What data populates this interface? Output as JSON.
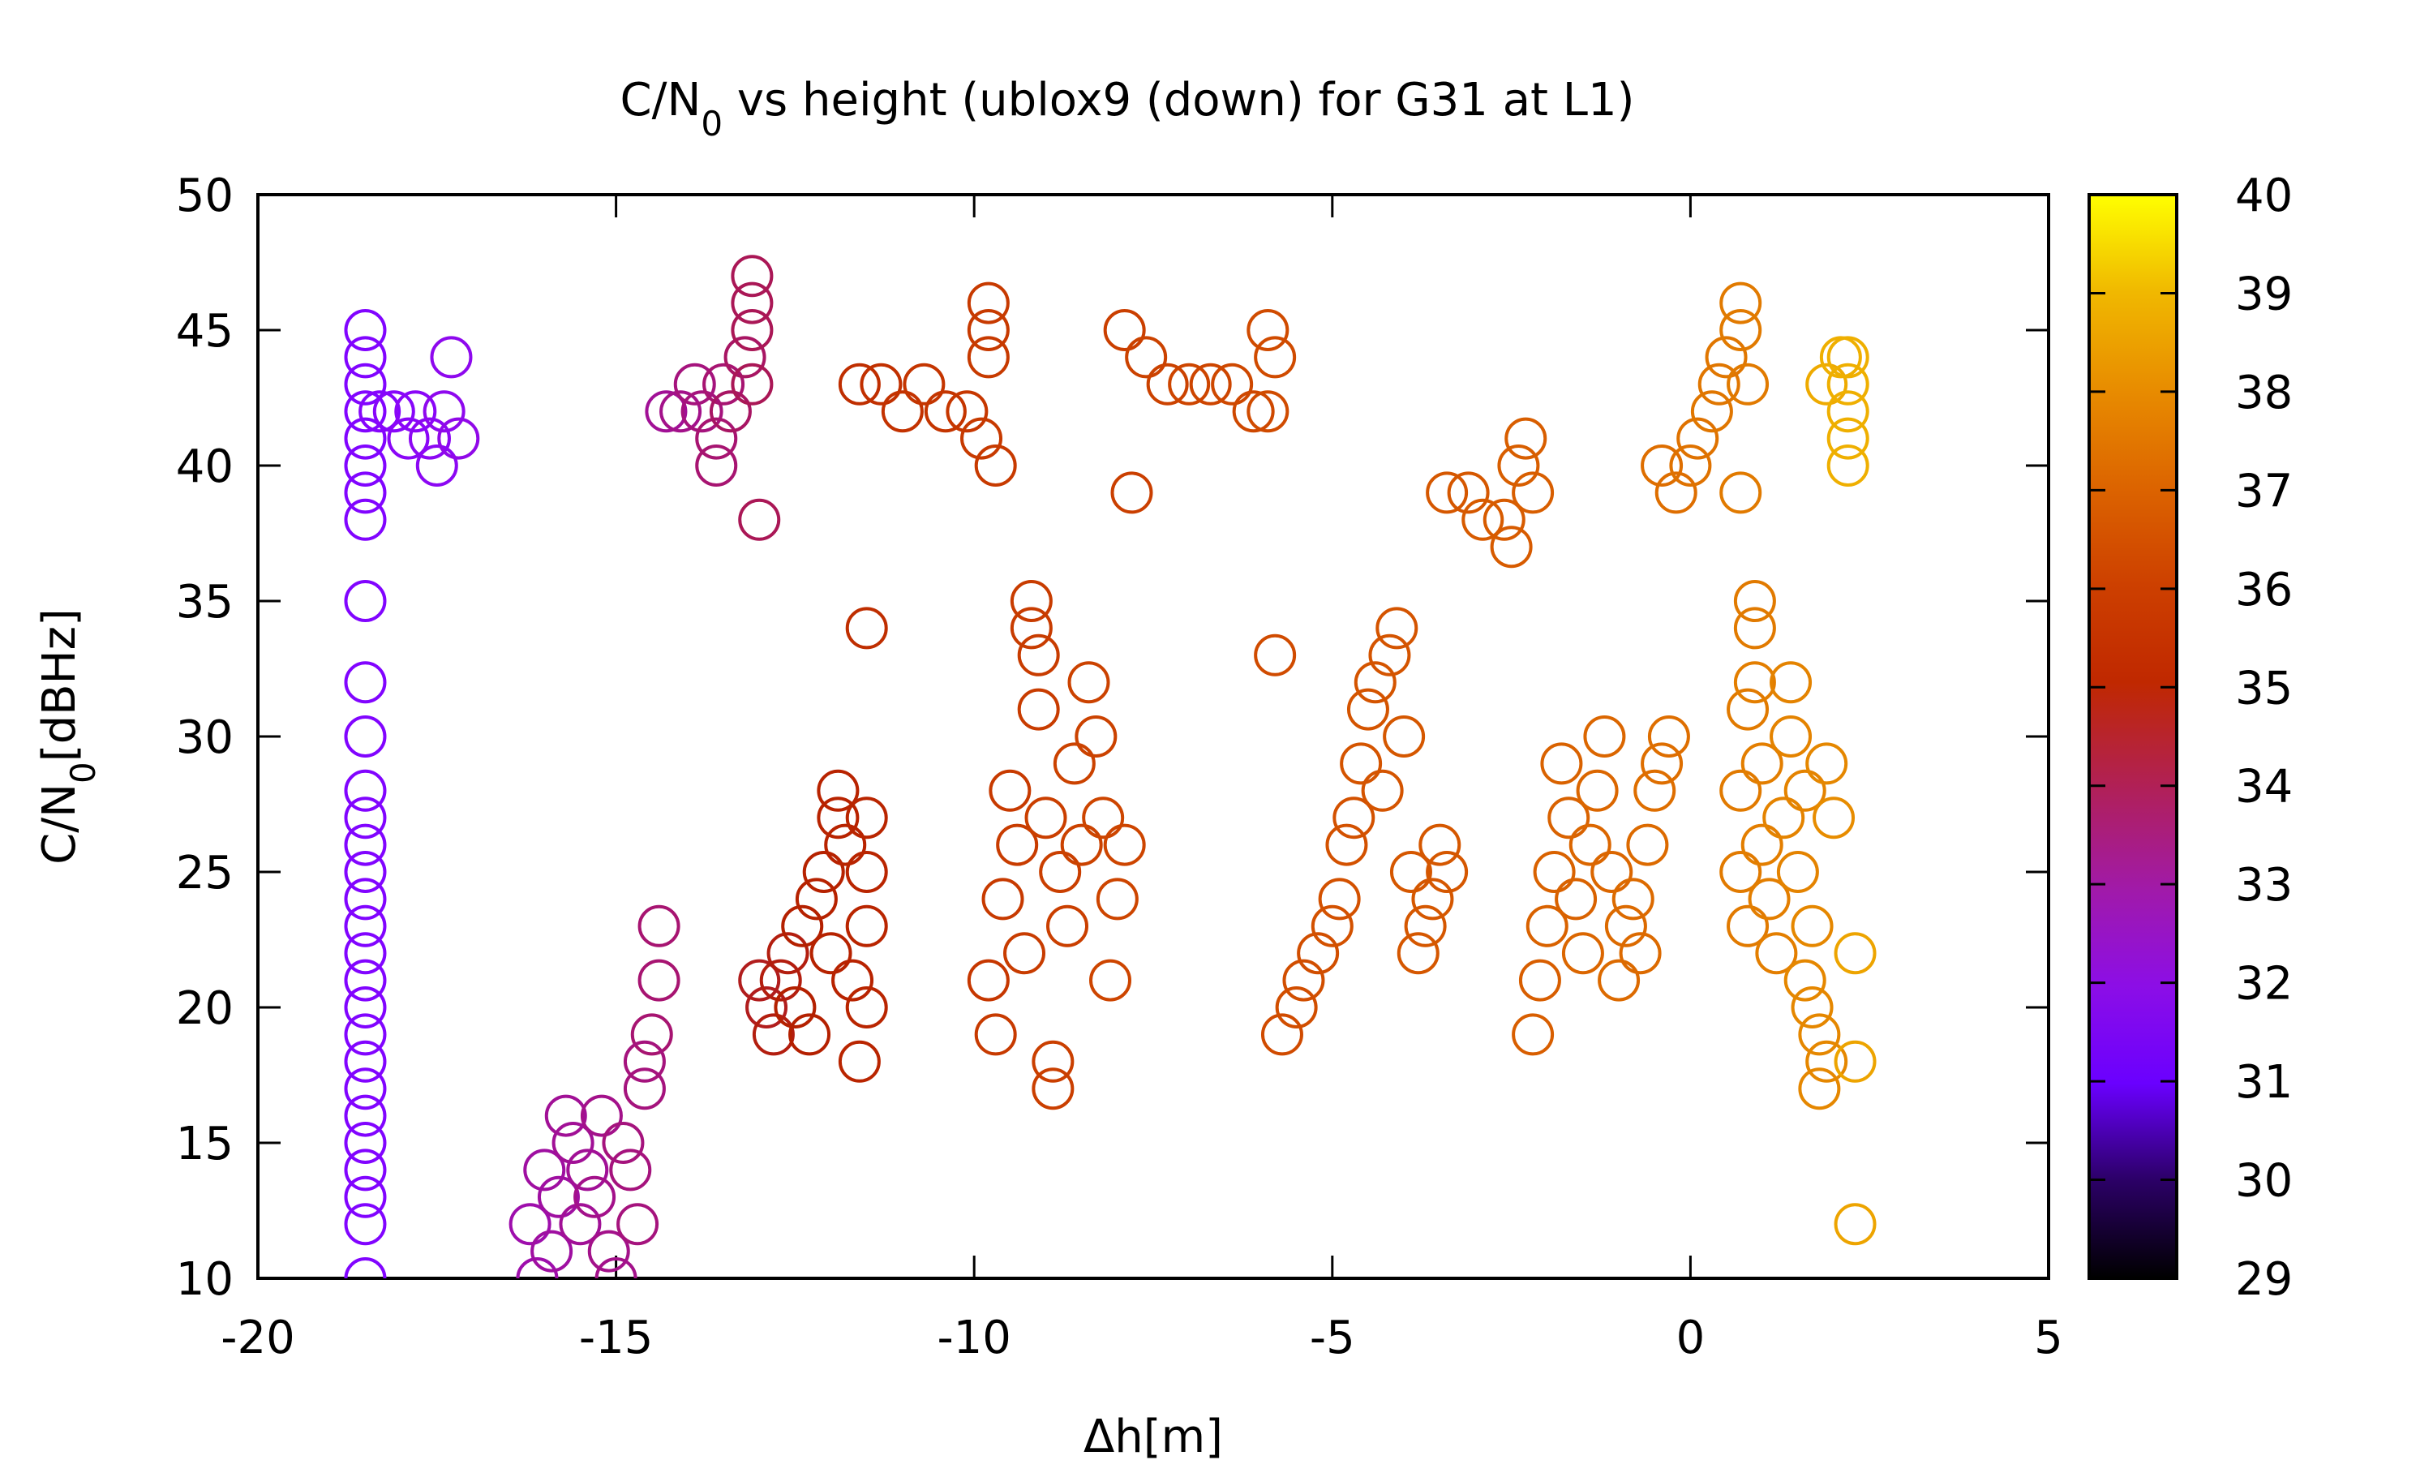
{
  "chart_data": {
    "type": "scatter",
    "title": "C/N",
    "title_sub": "0",
    "title_rest": " vs height (ublox9 (down) for G31 at L1)",
    "xlabel": "Δh[m]",
    "ylabel": "C/N",
    "ylabel_sub": "0",
    "ylabel_rest": "[dBHz]",
    "xlim": [
      -20,
      5
    ],
    "ylim": [
      10,
      50
    ],
    "xticks": [
      -20,
      -15,
      -10,
      -5,
      0,
      5
    ],
    "yticks": [
      10,
      15,
      20,
      25,
      30,
      35,
      40,
      45,
      50
    ],
    "marker": "open-circle",
    "colorbar": {
      "range": [
        29,
        40
      ],
      "ticks": [
        29,
        30,
        31,
        32,
        33,
        34,
        35,
        36,
        37,
        38,
        39,
        40
      ],
      "colormap": "gnuplot-pm3d-default"
    },
    "points": [
      {
        "x": -18.5,
        "y": 45,
        "c": 31.8
      },
      {
        "x": -18.5,
        "y": 44,
        "c": 31.8
      },
      {
        "x": -18.5,
        "y": 43,
        "c": 31.8
      },
      {
        "x": -18.5,
        "y": 42,
        "c": 31.8
      },
      {
        "x": -18.5,
        "y": 41,
        "c": 31.8
      },
      {
        "x": -18.5,
        "y": 40,
        "c": 31.8
      },
      {
        "x": -18.5,
        "y": 39,
        "c": 31.8
      },
      {
        "x": -18.5,
        "y": 38,
        "c": 31.8
      },
      {
        "x": -18.5,
        "y": 35,
        "c": 31.8
      },
      {
        "x": -18.5,
        "y": 32,
        "c": 31.8
      },
      {
        "x": -18.5,
        "y": 30,
        "c": 31.8
      },
      {
        "x": -18.5,
        "y": 28,
        "c": 31.8
      },
      {
        "x": -18.5,
        "y": 27,
        "c": 31.8
      },
      {
        "x": -18.5,
        "y": 26,
        "c": 31.8
      },
      {
        "x": -18.5,
        "y": 25,
        "c": 31.8
      },
      {
        "x": -18.5,
        "y": 24,
        "c": 31.8
      },
      {
        "x": -18.5,
        "y": 23,
        "c": 31.8
      },
      {
        "x": -18.5,
        "y": 22,
        "c": 31.8
      },
      {
        "x": -18.5,
        "y": 21,
        "c": 31.8
      },
      {
        "x": -18.5,
        "y": 20,
        "c": 31.8
      },
      {
        "x": -18.5,
        "y": 19,
        "c": 31.8
      },
      {
        "x": -18.5,
        "y": 18,
        "c": 31.8
      },
      {
        "x": -18.5,
        "y": 17,
        "c": 31.8
      },
      {
        "x": -18.5,
        "y": 16,
        "c": 31.8
      },
      {
        "x": -18.5,
        "y": 15,
        "c": 31.8
      },
      {
        "x": -18.5,
        "y": 14,
        "c": 31.8
      },
      {
        "x": -18.5,
        "y": 13,
        "c": 31.8
      },
      {
        "x": -18.5,
        "y": 12,
        "c": 31.8
      },
      {
        "x": -18.5,
        "y": 10,
        "c": 31.8
      },
      {
        "x": -18.3,
        "y": 42,
        "c": 32.0
      },
      {
        "x": -18.1,
        "y": 42,
        "c": 32.1
      },
      {
        "x": -17.9,
        "y": 41,
        "c": 32.2
      },
      {
        "x": -17.8,
        "y": 42,
        "c": 32.2
      },
      {
        "x": -17.6,
        "y": 41,
        "c": 32.3
      },
      {
        "x": -17.5,
        "y": 40,
        "c": 32.3
      },
      {
        "x": -17.4,
        "y": 42,
        "c": 32.4
      },
      {
        "x": -17.3,
        "y": 44,
        "c": 32.4
      },
      {
        "x": -17.2,
        "y": 41,
        "c": 32.5
      },
      {
        "x": -14.3,
        "y": 42,
        "c": 33.4
      },
      {
        "x": -14.1,
        "y": 42,
        "c": 33.5
      },
      {
        "x": -13.9,
        "y": 43,
        "c": 33.6
      },
      {
        "x": -13.8,
        "y": 42,
        "c": 33.6
      },
      {
        "x": -13.6,
        "y": 41,
        "c": 33.7
      },
      {
        "x": -13.6,
        "y": 40,
        "c": 33.7
      },
      {
        "x": -13.5,
        "y": 43,
        "c": 33.7
      },
      {
        "x": -13.4,
        "y": 42,
        "c": 33.8
      },
      {
        "x": -13.2,
        "y": 44,
        "c": 33.8
      },
      {
        "x": -13.1,
        "y": 45,
        "c": 33.9
      },
      {
        "x": -13.1,
        "y": 46,
        "c": 33.9
      },
      {
        "x": -13.1,
        "y": 47,
        "c": 33.9
      },
      {
        "x": -13.0,
        "y": 38,
        "c": 33.9
      },
      {
        "x": -13.1,
        "y": 43,
        "c": 33.9
      },
      {
        "x": -11.6,
        "y": 43,
        "c": 35.2
      },
      {
        "x": -11.3,
        "y": 43,
        "c": 35.3
      },
      {
        "x": -11.0,
        "y": 42,
        "c": 35.4
      },
      {
        "x": -10.7,
        "y": 43,
        "c": 35.5
      },
      {
        "x": -10.4,
        "y": 42,
        "c": 35.5
      },
      {
        "x": -10.1,
        "y": 42,
        "c": 35.6
      },
      {
        "x": -9.9,
        "y": 41,
        "c": 35.7
      },
      {
        "x": -9.8,
        "y": 44,
        "c": 35.7
      },
      {
        "x": -9.8,
        "y": 45,
        "c": 35.7
      },
      {
        "x": -9.8,
        "y": 46,
        "c": 35.7
      },
      {
        "x": -9.7,
        "y": 40,
        "c": 35.7
      },
      {
        "x": -11.5,
        "y": 34,
        "c": 35.2
      },
      {
        "x": -7.9,
        "y": 45,
        "c": 35.9
      },
      {
        "x": -7.6,
        "y": 44,
        "c": 36.0
      },
      {
        "x": -7.3,
        "y": 43,
        "c": 36.0
      },
      {
        "x": -7.0,
        "y": 43,
        "c": 36.1
      },
      {
        "x": -6.7,
        "y": 43,
        "c": 36.1
      },
      {
        "x": -6.4,
        "y": 43,
        "c": 36.2
      },
      {
        "x": -6.1,
        "y": 42,
        "c": 36.2
      },
      {
        "x": -5.9,
        "y": 45,
        "c": 36.3
      },
      {
        "x": -5.8,
        "y": 44,
        "c": 36.3
      },
      {
        "x": -5.9,
        "y": 42,
        "c": 36.3
      },
      {
        "x": -7.8,
        "y": 39,
        "c": 35.9
      },
      {
        "x": -5.8,
        "y": 33,
        "c": 36.3
      },
      {
        "x": -3.4,
        "y": 39,
        "c": 36.7
      },
      {
        "x": -3.1,
        "y": 39,
        "c": 36.7
      },
      {
        "x": -2.9,
        "y": 38,
        "c": 36.8
      },
      {
        "x": -2.6,
        "y": 38,
        "c": 36.8
      },
      {
        "x": -2.5,
        "y": 37,
        "c": 36.8
      },
      {
        "x": -2.4,
        "y": 40,
        "c": 36.9
      },
      {
        "x": -2.3,
        "y": 41,
        "c": 36.9
      },
      {
        "x": -2.2,
        "y": 39,
        "c": 36.9
      },
      {
        "x": -0.4,
        "y": 40,
        "c": 37.3
      },
      {
        "x": -0.2,
        "y": 39,
        "c": 37.3
      },
      {
        "x": 0.0,
        "y": 40,
        "c": 37.4
      },
      {
        "x": 0.1,
        "y": 41,
        "c": 37.4
      },
      {
        "x": 0.3,
        "y": 42,
        "c": 37.5
      },
      {
        "x": 0.4,
        "y": 43,
        "c": 37.5
      },
      {
        "x": 0.5,
        "y": 44,
        "c": 37.5
      },
      {
        "x": 0.7,
        "y": 45,
        "c": 37.6
      },
      {
        "x": 0.7,
        "y": 46,
        "c": 37.6
      },
      {
        "x": 0.7,
        "y": 39,
        "c": 37.6
      },
      {
        "x": 0.8,
        "y": 43,
        "c": 37.6
      },
      {
        "x": 1.9,
        "y": 43,
        "c": 38.6
      },
      {
        "x": 2.1,
        "y": 44,
        "c": 38.7
      },
      {
        "x": 2.2,
        "y": 43,
        "c": 38.7
      },
      {
        "x": 2.2,
        "y": 42,
        "c": 38.7
      },
      {
        "x": 2.2,
        "y": 41,
        "c": 38.7
      },
      {
        "x": 2.2,
        "y": 40,
        "c": 38.7
      },
      {
        "x": 2.2,
        "y": 44,
        "c": 38.7
      },
      {
        "x": -16.2,
        "y": 12,
        "c": 33.2
      },
      {
        "x": -16.1,
        "y": 10,
        "c": 33.2
      },
      {
        "x": -16.0,
        "y": 14,
        "c": 33.3
      },
      {
        "x": -15.9,
        "y": 11,
        "c": 33.3
      },
      {
        "x": -15.8,
        "y": 13,
        "c": 33.3
      },
      {
        "x": -15.7,
        "y": 16,
        "c": 33.4
      },
      {
        "x": -15.6,
        "y": 15,
        "c": 33.4
      },
      {
        "x": -15.5,
        "y": 12,
        "c": 33.4
      },
      {
        "x": -15.4,
        "y": 14,
        "c": 33.4
      },
      {
        "x": -15.3,
        "y": 13,
        "c": 33.5
      },
      {
        "x": -15.2,
        "y": 16,
        "c": 33.5
      },
      {
        "x": -15.1,
        "y": 11,
        "c": 33.5
      },
      {
        "x": -15.0,
        "y": 10,
        "c": 33.5
      },
      {
        "x": -14.9,
        "y": 15,
        "c": 33.6
      },
      {
        "x": -14.8,
        "y": 14,
        "c": 33.6
      },
      {
        "x": -14.7,
        "y": 12,
        "c": 33.6
      },
      {
        "x": -14.6,
        "y": 17,
        "c": 33.6
      },
      {
        "x": -14.5,
        "y": 19,
        "c": 33.7
      },
      {
        "x": -14.4,
        "y": 21,
        "c": 33.7
      },
      {
        "x": -14.4,
        "y": 23,
        "c": 33.7
      },
      {
        "x": -14.6,
        "y": 18,
        "c": 33.6
      },
      {
        "x": -13.0,
        "y": 21,
        "c": 34.3
      },
      {
        "x": -12.9,
        "y": 20,
        "c": 34.3
      },
      {
        "x": -12.8,
        "y": 19,
        "c": 34.4
      },
      {
        "x": -12.7,
        "y": 21,
        "c": 34.4
      },
      {
        "x": -12.6,
        "y": 22,
        "c": 34.4
      },
      {
        "x": -12.5,
        "y": 20,
        "c": 34.5
      },
      {
        "x": -12.4,
        "y": 23,
        "c": 34.5
      },
      {
        "x": -12.3,
        "y": 19,
        "c": 34.5
      },
      {
        "x": -12.2,
        "y": 24,
        "c": 34.6
      },
      {
        "x": -12.1,
        "y": 25,
        "c": 34.6
      },
      {
        "x": -12.0,
        "y": 22,
        "c": 34.6
      },
      {
        "x": -11.9,
        "y": 28,
        "c": 34.7
      },
      {
        "x": -11.9,
        "y": 27,
        "c": 34.7
      },
      {
        "x": -11.8,
        "y": 26,
        "c": 34.7
      },
      {
        "x": -11.7,
        "y": 21,
        "c": 34.7
      },
      {
        "x": -11.6,
        "y": 18,
        "c": 34.8
      },
      {
        "x": -11.5,
        "y": 20,
        "c": 34.8
      },
      {
        "x": -11.5,
        "y": 23,
        "c": 34.8
      },
      {
        "x": -11.5,
        "y": 27,
        "c": 34.8
      },
      {
        "x": -11.5,
        "y": 25,
        "c": 34.8
      },
      {
        "x": -9.8,
        "y": 21,
        "c": 35.6
      },
      {
        "x": -9.7,
        "y": 19,
        "c": 35.7
      },
      {
        "x": -9.6,
        "y": 24,
        "c": 35.7
      },
      {
        "x": -9.5,
        "y": 28,
        "c": 35.7
      },
      {
        "x": -9.4,
        "y": 26,
        "c": 35.8
      },
      {
        "x": -9.3,
        "y": 22,
        "c": 35.8
      },
      {
        "x": -9.2,
        "y": 35,
        "c": 35.8
      },
      {
        "x": -9.2,
        "y": 34,
        "c": 35.8
      },
      {
        "x": -9.1,
        "y": 33,
        "c": 35.8
      },
      {
        "x": -9.1,
        "y": 31,
        "c": 35.8
      },
      {
        "x": -9.0,
        "y": 27,
        "c": 35.9
      },
      {
        "x": -8.9,
        "y": 18,
        "c": 35.9
      },
      {
        "x": -8.9,
        "y": 17,
        "c": 35.9
      },
      {
        "x": -8.8,
        "y": 25,
        "c": 35.9
      },
      {
        "x": -8.7,
        "y": 23,
        "c": 35.9
      },
      {
        "x": -8.6,
        "y": 29,
        "c": 36.0
      },
      {
        "x": -8.5,
        "y": 26,
        "c": 36.0
      },
      {
        "x": -8.4,
        "y": 32,
        "c": 36.0
      },
      {
        "x": -8.3,
        "y": 30,
        "c": 36.0
      },
      {
        "x": -8.2,
        "y": 27,
        "c": 36.1
      },
      {
        "x": -8.1,
        "y": 21,
        "c": 36.1
      },
      {
        "x": -8.0,
        "y": 24,
        "c": 36.1
      },
      {
        "x": -7.9,
        "y": 26,
        "c": 36.1
      },
      {
        "x": -5.7,
        "y": 19,
        "c": 36.3
      },
      {
        "x": -5.5,
        "y": 20,
        "c": 36.4
      },
      {
        "x": -5.4,
        "y": 21,
        "c": 36.4
      },
      {
        "x": -5.2,
        "y": 22,
        "c": 36.4
      },
      {
        "x": -5.0,
        "y": 23,
        "c": 36.5
      },
      {
        "x": -4.9,
        "y": 24,
        "c": 36.5
      },
      {
        "x": -4.8,
        "y": 26,
        "c": 36.5
      },
      {
        "x": -4.7,
        "y": 27,
        "c": 36.5
      },
      {
        "x": -4.6,
        "y": 29,
        "c": 36.6
      },
      {
        "x": -4.5,
        "y": 31,
        "c": 36.6
      },
      {
        "x": -4.4,
        "y": 32,
        "c": 36.6
      },
      {
        "x": -4.3,
        "y": 28,
        "c": 36.6
      },
      {
        "x": -4.2,
        "y": 33,
        "c": 36.6
      },
      {
        "x": -4.1,
        "y": 34,
        "c": 36.6
      },
      {
        "x": -4.0,
        "y": 30,
        "c": 36.7
      },
      {
        "x": -3.9,
        "y": 25,
        "c": 36.7
      },
      {
        "x": -3.8,
        "y": 22,
        "c": 36.7
      },
      {
        "x": -3.7,
        "y": 23,
        "c": 36.7
      },
      {
        "x": -3.6,
        "y": 24,
        "c": 36.7
      },
      {
        "x": -3.5,
        "y": 26,
        "c": 36.7
      },
      {
        "x": -3.4,
        "y": 25,
        "c": 36.7
      },
      {
        "x": -2.2,
        "y": 19,
        "c": 36.9
      },
      {
        "x": -2.1,
        "y": 21,
        "c": 36.9
      },
      {
        "x": -2.0,
        "y": 23,
        "c": 37.0
      },
      {
        "x": -1.9,
        "y": 25,
        "c": 37.0
      },
      {
        "x": -1.8,
        "y": 29,
        "c": 37.0
      },
      {
        "x": -1.7,
        "y": 27,
        "c": 37.0
      },
      {
        "x": -1.6,
        "y": 24,
        "c": 37.0
      },
      {
        "x": -1.5,
        "y": 22,
        "c": 37.1
      },
      {
        "x": -1.4,
        "y": 26,
        "c": 37.1
      },
      {
        "x": -1.3,
        "y": 28,
        "c": 37.1
      },
      {
        "x": -1.2,
        "y": 30,
        "c": 37.1
      },
      {
        "x": -1.1,
        "y": 25,
        "c": 37.1
      },
      {
        "x": -1.0,
        "y": 21,
        "c": 37.2
      },
      {
        "x": -0.9,
        "y": 23,
        "c": 37.2
      },
      {
        "x": -0.8,
        "y": 24,
        "c": 37.2
      },
      {
        "x": -0.7,
        "y": 22,
        "c": 37.2
      },
      {
        "x": -0.6,
        "y": 26,
        "c": 37.2
      },
      {
        "x": -0.5,
        "y": 28,
        "c": 37.3
      },
      {
        "x": -0.4,
        "y": 29,
        "c": 37.3
      },
      {
        "x": -0.3,
        "y": 30,
        "c": 37.3
      },
      {
        "x": 0.7,
        "y": 28,
        "c": 37.6
      },
      {
        "x": 0.7,
        "y": 25,
        "c": 37.6
      },
      {
        "x": 0.8,
        "y": 23,
        "c": 37.6
      },
      {
        "x": 0.8,
        "y": 31,
        "c": 37.6
      },
      {
        "x": 0.9,
        "y": 35,
        "c": 37.6
      },
      {
        "x": 0.9,
        "y": 34,
        "c": 37.6
      },
      {
        "x": 0.9,
        "y": 32,
        "c": 37.7
      },
      {
        "x": 1.0,
        "y": 29,
        "c": 37.7
      },
      {
        "x": 1.0,
        "y": 26,
        "c": 37.7
      },
      {
        "x": 1.1,
        "y": 24,
        "c": 37.7
      },
      {
        "x": 1.2,
        "y": 22,
        "c": 37.7
      },
      {
        "x": 1.3,
        "y": 27,
        "c": 37.8
      },
      {
        "x": 1.4,
        "y": 32,
        "c": 37.8
      },
      {
        "x": 1.4,
        "y": 30,
        "c": 37.8
      },
      {
        "x": 1.5,
        "y": 25,
        "c": 37.8
      },
      {
        "x": 1.6,
        "y": 28,
        "c": 37.8
      },
      {
        "x": 1.6,
        "y": 21,
        "c": 37.9
      },
      {
        "x": 1.7,
        "y": 23,
        "c": 37.9
      },
      {
        "x": 1.7,
        "y": 20,
        "c": 37.9
      },
      {
        "x": 1.8,
        "y": 19,
        "c": 37.9
      },
      {
        "x": 1.8,
        "y": 17,
        "c": 37.9
      },
      {
        "x": 1.9,
        "y": 18,
        "c": 37.9
      },
      {
        "x": 1.9,
        "y": 29,
        "c": 37.9
      },
      {
        "x": 2.0,
        "y": 27,
        "c": 38.0
      },
      {
        "x": 2.3,
        "y": 22,
        "c": 38.5
      },
      {
        "x": 2.3,
        "y": 18,
        "c": 38.5
      },
      {
        "x": 2.3,
        "y": 12,
        "c": 38.5
      }
    ]
  }
}
